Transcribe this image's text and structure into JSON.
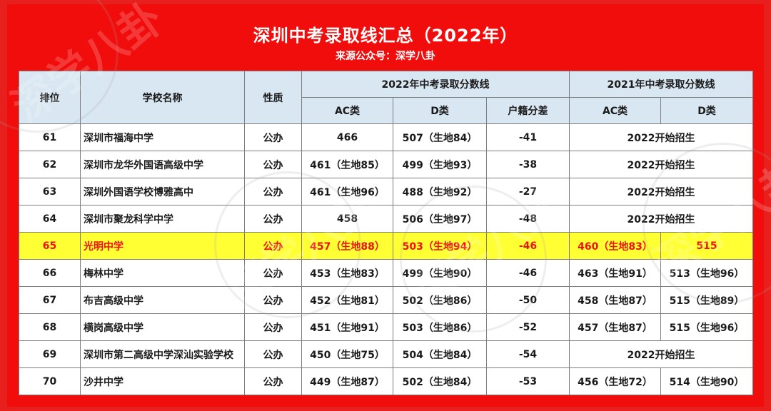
{
  "title": "深圳中考录取线汇总（2022年）",
  "subtitle": "来源公众号：深学八卦",
  "watermark": "深学八卦",
  "colors": {
    "frame": "#f20d0d",
    "header_bg": "#d9e7f2",
    "highlight_bg": "#ffff33",
    "highlight_text": "#ee1111"
  },
  "headers": {
    "rank": "排位",
    "school": "学校名称",
    "type": "性质",
    "group2022": "2022年中考录取分数线",
    "group2021": "2021年中考录取分数线",
    "ac2022": "AC类",
    "d2022": "D类",
    "diff": "户籍分差",
    "ac2021": "AC类",
    "d2021": "D类"
  },
  "rows": [
    {
      "rank": "61",
      "school": "深圳市福海中学",
      "type": "公办",
      "ac2022": "466",
      "d2022": "507（生地84）",
      "diff": "-41",
      "merged2021": "2022开始招生",
      "highlight": false
    },
    {
      "rank": "62",
      "school": "深圳市龙华外国语高级中学",
      "type": "公办",
      "ac2022": "461（生地85）",
      "d2022": "499（生地93）",
      "diff": "-38",
      "merged2021": "2022开始招生",
      "highlight": false
    },
    {
      "rank": "63",
      "school": "深圳外国语学校博雅高中",
      "type": "公办",
      "ac2022": "461（生地96）",
      "d2022": "488（生地92）",
      "diff": "-27",
      "merged2021": "2022开始招生",
      "highlight": false
    },
    {
      "rank": "64",
      "school": "深圳市聚龙科学中学",
      "type": "公办",
      "ac2022": "458",
      "d2022": "506（生地97）",
      "diff": "-48",
      "merged2021": "2022开始招生",
      "highlight": false
    },
    {
      "rank": "65",
      "school": "光明中学",
      "type": "公办",
      "ac2022": "457（生地88）",
      "d2022": "503（生地94）",
      "diff": "-46",
      "ac2021": "460（生地83）",
      "d2021": "515",
      "highlight": true
    },
    {
      "rank": "66",
      "school": "梅林中学",
      "type": "公办",
      "ac2022": "453（生地83）",
      "d2022": "499（生地90）",
      "diff": "-46",
      "ac2021": "463（生地91）",
      "d2021": "513（生地96）",
      "highlight": false
    },
    {
      "rank": "67",
      "school": "布吉高级中学",
      "type": "公办",
      "ac2022": "452（生地81）",
      "d2022": "502（生地86）",
      "diff": "-50",
      "ac2021": "458（生地87）",
      "d2021": "515（生地89）",
      "highlight": false
    },
    {
      "rank": "68",
      "school": "横岗高级中学",
      "type": "公办",
      "ac2022": "451（生地91）",
      "d2022": "503（生地86）",
      "diff": "-52",
      "ac2021": "457（生地87）",
      "d2021": "515（生地96）",
      "highlight": false
    },
    {
      "rank": "69",
      "school": "深圳市第二高级中学深汕实验学校",
      "type": "公办",
      "ac2022": "450（生地75）",
      "d2022": "504（生地84）",
      "diff": "-54",
      "merged2021": "2022开始招生",
      "highlight": false
    },
    {
      "rank": "70",
      "school": "沙井中学",
      "type": "公办",
      "ac2022": "449（生地87）",
      "d2022": "502（生地84）",
      "diff": "-53",
      "ac2021": "456（生地72）",
      "d2021": "514（生地90）",
      "highlight": false
    }
  ]
}
